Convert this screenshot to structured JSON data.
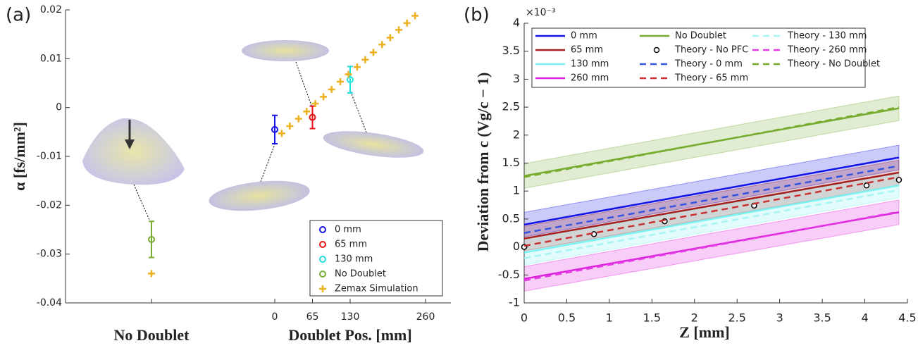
{
  "chart_data": [
    {
      "type": "errorbar",
      "panel": "(a)",
      "ylabel": "α [fs/mm²]",
      "xlabel": "Doublet Pos. [mm]",
      "no_doublet_label": "No Doublet",
      "xlim": [
        0,
        260
      ],
      "xticks": [
        0,
        65,
        130,
        260
      ],
      "ylim": [
        -0.04,
        0.02
      ],
      "yticks": [
        -0.04,
        -0.03,
        -0.02,
        -0.01,
        0,
        0.01,
        0.02
      ],
      "series": [
        {
          "name": "0 mm",
          "color": "#1414e6",
          "marker": "o",
          "x": [
            0
          ],
          "values": [
            -0.0045
          ],
          "errors": [
            0.0029
          ]
        },
        {
          "name": "65 mm",
          "color": "#e61414",
          "marker": "o",
          "x": [
            65
          ],
          "values": [
            -0.002
          ],
          "errors": [
            0.0023
          ]
        },
        {
          "name": "130 mm",
          "color": "#22e0e0",
          "marker": "o",
          "x": [
            130
          ],
          "values": [
            0.0057
          ],
          "errors": [
            0.0027
          ]
        },
        {
          "name": "No Doublet",
          "color": "#77ac30",
          "marker": "o",
          "no_doublet": -0.027,
          "no_doublet_error": 0.0037
        },
        {
          "name": "Zemax Simulation",
          "color": "#edb120",
          "marker": "+",
          "x": [
            12,
            26,
            41,
            55,
            70,
            84,
            98,
            113,
            127,
            142,
            156,
            170,
            185,
            199,
            214,
            228,
            242
          ],
          "values": [
            -0.0053,
            -0.0038,
            -0.0023,
            -0.0008,
            0.0008,
            0.0022,
            0.0037,
            0.0053,
            0.0068,
            0.0083,
            0.0098,
            0.0113,
            0.0129,
            0.0143,
            0.0159,
            0.0173,
            0.0188
          ],
          "no_doublet": -0.034
        }
      ]
    },
    {
      "type": "line",
      "panel": "(b)",
      "ylabel": "Deviation from c (Vg/c − 1)",
      "y_multiplier": "×10⁻³",
      "xlabel": "Z [mm]",
      "xlim": [
        0,
        4.5
      ],
      "xticks": [
        0,
        0.5,
        1,
        1.5,
        2,
        2.5,
        3,
        3.5,
        4,
        4.5
      ],
      "ylim": [
        -1,
        4
      ],
      "yticks": [
        -1,
        -0.5,
        0,
        0.5,
        1,
        1.5,
        2,
        2.5,
        3,
        3.5,
        4
      ],
      "series": [
        {
          "name": "0 mm",
          "color": "#1414e6",
          "style": "solid",
          "x": [
            0,
            4.4
          ],
          "values": [
            0.4,
            1.6
          ],
          "band": 0.22
        },
        {
          "name": "65 mm",
          "color": "#a52020",
          "style": "solid",
          "x": [
            0,
            4.4
          ],
          "values": [
            0.15,
            1.33
          ],
          "band": 0.22
        },
        {
          "name": "130 mm",
          "color": "#7cf2f2",
          "style": "solid",
          "x": [
            0,
            4.4
          ],
          "values": [
            -0.1,
            1.1
          ],
          "band": 0.22
        },
        {
          "name": "260 mm",
          "color": "#dd22dd",
          "style": "solid",
          "x": [
            0,
            4.4
          ],
          "values": [
            -0.57,
            0.62
          ],
          "band": 0.22
        },
        {
          "name": "No Doublet",
          "color": "#77ac30",
          "style": "solid",
          "x": [
            0,
            4.4
          ],
          "values": [
            1.27,
            2.48
          ],
          "band": 0.22
        },
        {
          "name": "Theory - No PFC",
          "color": "#000000",
          "style": "markers",
          "x": [
            0,
            0.82,
            1.65,
            2.7,
            4.02,
            4.4
          ],
          "values": [
            0,
            0.23,
            0.46,
            0.74,
            1.1,
            1.2
          ]
        },
        {
          "name": "Theory - 0 mm",
          "color": "#3355e0",
          "style": "dashed",
          "x": [
            0,
            4.4
          ],
          "values": [
            0.25,
            1.45
          ]
        },
        {
          "name": "Theory - 65 mm",
          "color": "#c83232",
          "style": "dashed",
          "x": [
            0,
            4.4
          ],
          "values": [
            0.02,
            1.25
          ]
        },
        {
          "name": "Theory - 130 mm",
          "color": "#a8f4f4",
          "style": "dashed",
          "x": [
            0,
            4.4
          ],
          "values": [
            -0.2,
            1.02
          ]
        },
        {
          "name": "Theory - 260 mm",
          "color": "#e43ce4",
          "style": "dashed",
          "x": [
            0,
            4.4
          ],
          "values": [
            -0.6,
            0.63
          ]
        },
        {
          "name": "Theory - No Doublet",
          "color": "#77ac30",
          "style": "dashed",
          "x": [
            0,
            4.4
          ],
          "values": [
            1.25,
            2.5
          ]
        }
      ]
    }
  ]
}
